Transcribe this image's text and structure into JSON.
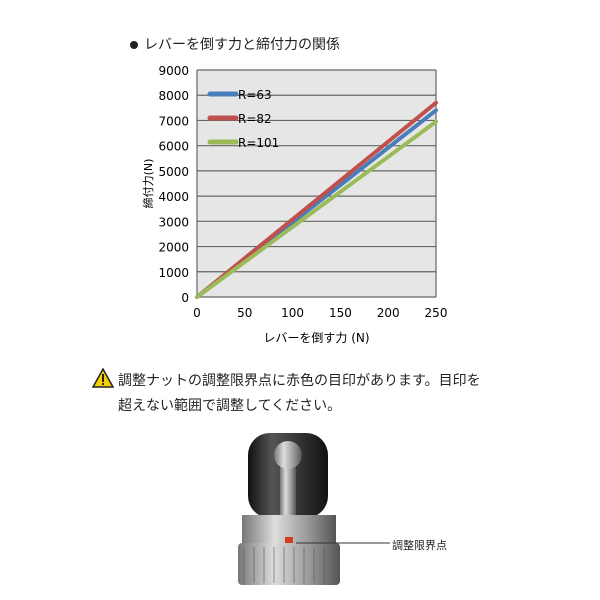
{
  "heading": "レバーを倒す力と締付力の関係",
  "chart_data": {
    "type": "line",
    "title": "",
    "xlabel": "レバーを倒す力 (N)",
    "ylabel": "締付力(N)",
    "xlim": [
      0,
      250
    ],
    "ylim": [
      0,
      9000
    ],
    "xticks": [
      "0",
      "50",
      "100",
      "150",
      "200",
      "250"
    ],
    "yticks": [
      "0",
      "1000",
      "2000",
      "3000",
      "4000",
      "5000",
      "6000",
      "7000",
      "8000",
      "9000"
    ],
    "grid": true,
    "legend_position": "top-left",
    "series": [
      {
        "name": "R=63",
        "color": "#4a7ebb",
        "x": [
          0,
          250
        ],
        "y": [
          0,
          7400
        ]
      },
      {
        "name": "R=82",
        "color": "#c0504d",
        "x": [
          0,
          250
        ],
        "y": [
          0,
          7700
        ]
      },
      {
        "name": "R=101",
        "color": "#9bbb59",
        "x": [
          0,
          250
        ],
        "y": [
          0,
          6950
        ]
      }
    ]
  },
  "warning": {
    "icon": "warning-triangle-icon",
    "line1": "調整ナットの調整限界点に赤色の目印があります。目印を",
    "line2": "超えない範囲で調整してください。"
  },
  "photo": {
    "callout": "調整限界点"
  }
}
